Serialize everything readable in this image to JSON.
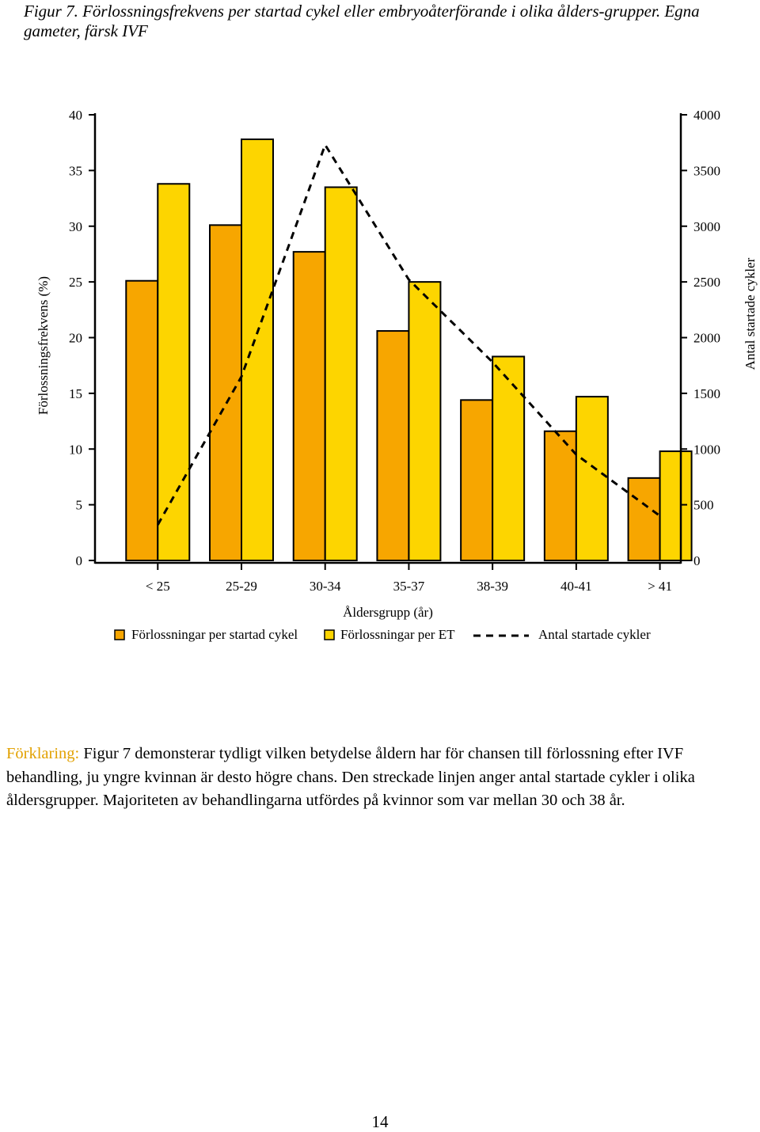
{
  "caption": {
    "text": "Figur 7.  Förlossningsfrekvens per startad cykel eller embryoåterförande i olika ålders-grupper. Egna gameter, färsk IVF"
  },
  "chart_data": {
    "type": "bar",
    "categories": [
      "< 25",
      "25-29",
      "30-34",
      "35-37",
      "38-39",
      "40-41",
      "> 41"
    ],
    "series": [
      {
        "name": "Förlossningar per startad cykel",
        "type": "bar",
        "axis": "left",
        "color": "#f7a600",
        "values": [
          25.1,
          30.1,
          27.7,
          20.6,
          14.4,
          11.6,
          7.4
        ]
      },
      {
        "name": "Förlossningar per ET",
        "type": "bar",
        "axis": "left",
        "color": "#fdd500",
        "values": [
          33.8,
          37.8,
          33.5,
          25.0,
          18.3,
          14.7,
          9.8
        ]
      },
      {
        "name": "Antal startade cykler",
        "type": "line",
        "style": "dashed",
        "axis": "right",
        "color": "#000000",
        "values": [
          320,
          1650,
          3730,
          2520,
          1780,
          950,
          400
        ]
      }
    ],
    "xlabel": "Åldersgrupp (år)",
    "ylabel": "Förlossningsfrekvens (%)",
    "y2label": "Antal startade cykler",
    "ylim": [
      0,
      40
    ],
    "y2lim": [
      0,
      4000
    ],
    "yticks": [
      0,
      5,
      10,
      15,
      20,
      25,
      30,
      35,
      40
    ],
    "y2ticks": [
      0,
      500,
      1000,
      1500,
      2000,
      2500,
      3000,
      3500,
      4000
    ],
    "grid": false,
    "legend_position": "bottom"
  },
  "explanation": {
    "label": "Förklaring:",
    "text": "Figur 7 demonsterar tydligt vilken betydelse åldern har för chansen till förlossning efter IVF behandling, ju yngre kvinnan är desto högre chans. Den streckade linjen anger antal startade cykler i olika åldersgrupper. Majoriteten av behandlingarna utfördes på kvinnor som var mellan 30 och 38 år."
  },
  "page_number": "14"
}
